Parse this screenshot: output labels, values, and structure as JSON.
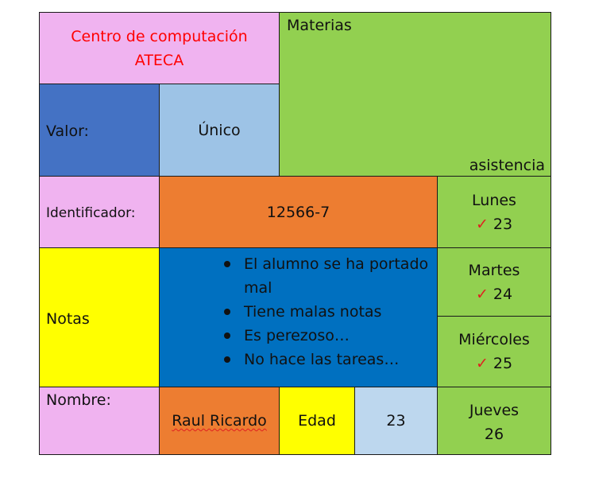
{
  "title": {
    "line1": "Centro de computación",
    "line2": "ATECA"
  },
  "materias": {
    "label": "Materias",
    "asistencia_label": "asistencia"
  },
  "valor": {
    "label": "Valor:",
    "value": "Único"
  },
  "identificador": {
    "label": "Identificador:",
    "value": "12566-7"
  },
  "notas": {
    "label": "Notas",
    "items": [
      "El alumno se ha portado mal",
      "Tiene malas notas",
      "Es perezoso…",
      "No hace las tareas…"
    ]
  },
  "nombre": {
    "label": "Nombre:",
    "value": "Raul Ricardo"
  },
  "edad": {
    "label": "Edad",
    "value": "23"
  },
  "asistencia": [
    {
      "day": "Lunes",
      "date": "23",
      "checked": true
    },
    {
      "day": "Martes",
      "date": "24",
      "checked": true
    },
    {
      "day": "Miércoles",
      "date": "25",
      "checked": true
    },
    {
      "day": "Jueves",
      "date": "26",
      "checked": false
    }
  ],
  "colors": {
    "pink": "#f0b3f0",
    "green": "#92d050",
    "blue": "#4472c4",
    "light_blue": "#9dc3e6",
    "orange": "#ed7d31",
    "yellow": "#ffff00",
    "dark_blue": "#0070c0",
    "pale_blue": "#bdd7ee",
    "title_red": "#ff0000",
    "check_red": "#e02020"
  }
}
